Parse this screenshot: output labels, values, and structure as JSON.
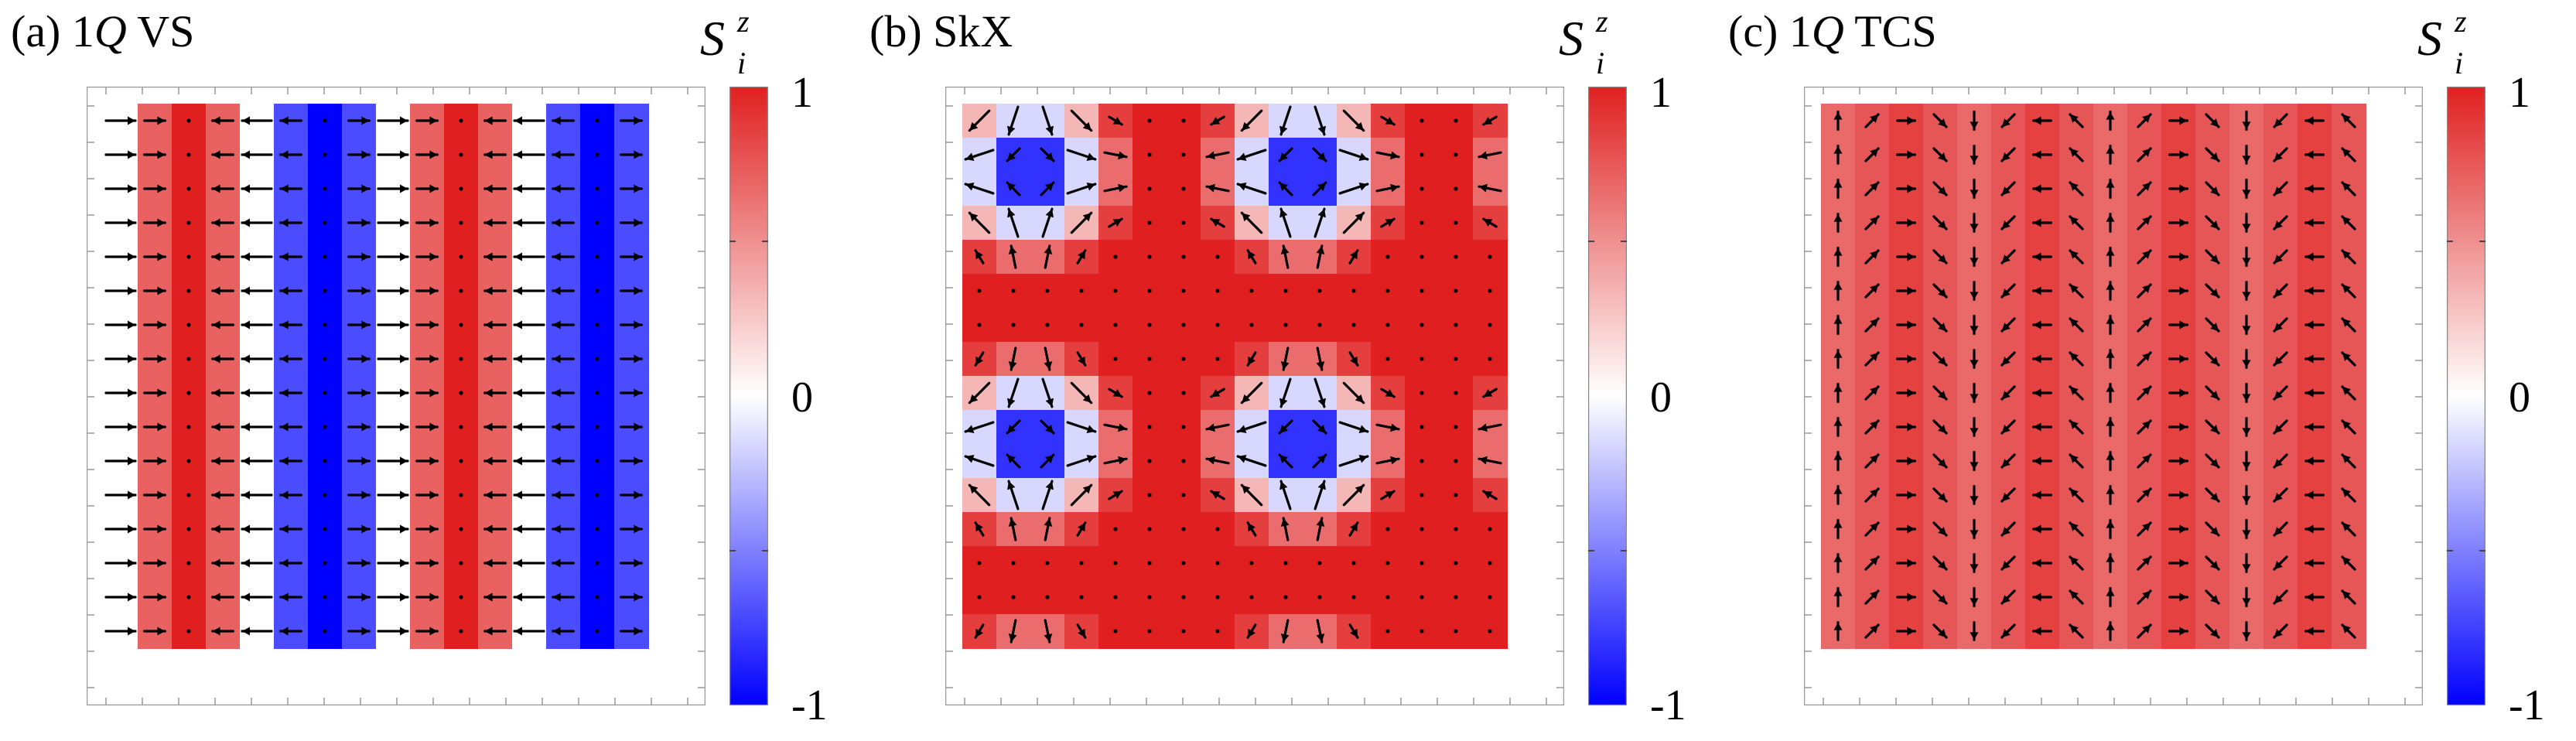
{
  "panels": [
    {
      "prefix": "(a) 1",
      "q": "Q",
      "suffix": " VS",
      "pattern": "1Q-VS"
    },
    {
      "prefix": "(b) SkX",
      "q": "",
      "suffix": "",
      "pattern": "SkX"
    },
    {
      "prefix": "(c) 1",
      "q": "Q",
      "suffix": " TCS",
      "pattern": "1Q-TCS"
    }
  ],
  "colorbar": {
    "symbol": "S",
    "subscript": "i",
    "superscript": "z",
    "ticks": {
      "top": "1",
      "mid": "0",
      "bottom": "-1"
    },
    "colors": {
      "min": "#0000ff",
      "mid": "#ffffff",
      "max": "#e02020"
    }
  }
}
